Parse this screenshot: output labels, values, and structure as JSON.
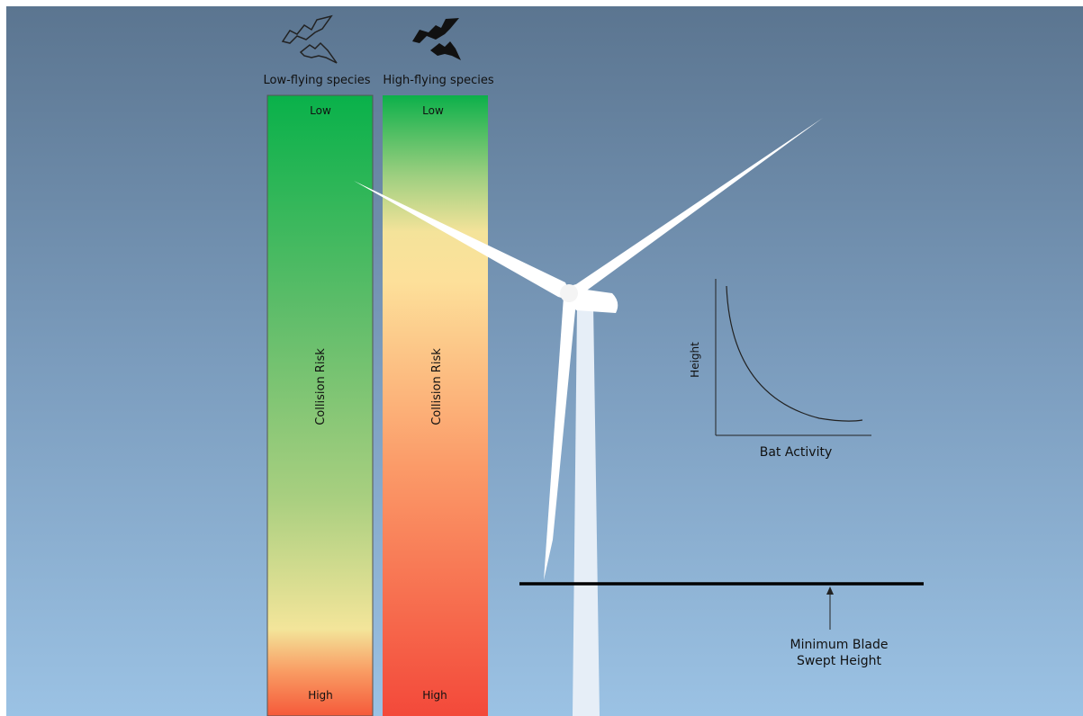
{
  "species": [
    {
      "label": "Low-flying species",
      "top": "Low",
      "axis": "Collision Risk",
      "bottom": "High"
    },
    {
      "label": "High-flying species",
      "top": "Low",
      "axis": "Collision Risk",
      "bottom": "High"
    }
  ],
  "inset": {
    "y_label": "Height",
    "x_label": "Bat Activity"
  },
  "annotation": {
    "lines": [
      "Minimum Blade",
      "Swept Height"
    ]
  }
}
